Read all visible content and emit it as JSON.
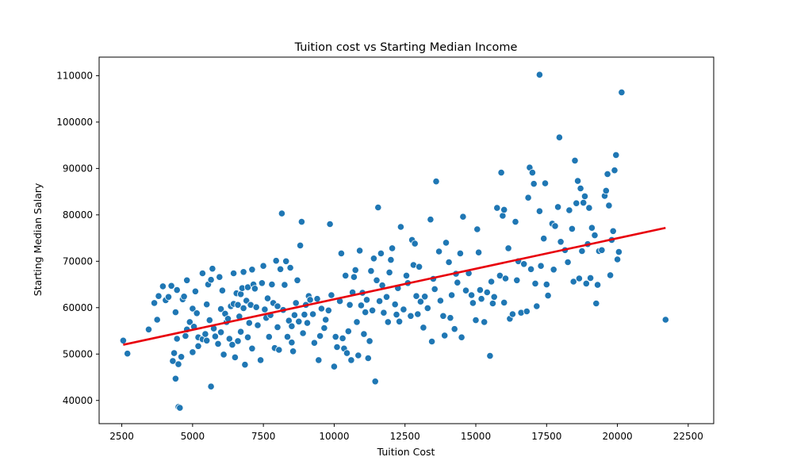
{
  "chart_data": {
    "type": "scatter",
    "title": "Tuition cost vs Starting Median Income",
    "xlabel": "Tuition Cost",
    "ylabel": "Starting Median Salary",
    "xlim": [
      1700,
      23400
    ],
    "ylim": [
      35000,
      114000
    ],
    "xticks": [
      2500,
      5000,
      7500,
      10000,
      12500,
      15000,
      17500,
      20000,
      22500
    ],
    "yticks": [
      40000,
      50000,
      60000,
      70000,
      80000,
      90000,
      100000,
      110000
    ],
    "grid": false,
    "legend": "none",
    "colors": {
      "points": "#1f77b4",
      "trend": "#e8000b"
    },
    "trendline": {
      "x": [
        2550,
        21700
      ],
      "y": [
        52000,
        77200
      ]
    },
    "points": [
      [
        2550,
        52900
      ],
      [
        2700,
        50100
      ],
      [
        3450,
        55300
      ],
      [
        3650,
        61000
      ],
      [
        3750,
        57400
      ],
      [
        3800,
        62500
      ],
      [
        3950,
        64600
      ],
      [
        4050,
        61600
      ],
      [
        4150,
        62300
      ],
      [
        4250,
        64700
      ],
      [
        4300,
        48500
      ],
      [
        4350,
        50200
      ],
      [
        4400,
        44700
      ],
      [
        4400,
        59000
      ],
      [
        4450,
        63800
      ],
      [
        4450,
        53300
      ],
      [
        4500,
        47800
      ],
      [
        4500,
        38600
      ],
      [
        4550,
        38400
      ],
      [
        4600,
        49400
      ],
      [
        4650,
        61800
      ],
      [
        4700,
        62400
      ],
      [
        4750,
        53900
      ],
      [
        4800,
        65900
      ],
      [
        4800,
        55300
      ],
      [
        4900,
        56900
      ],
      [
        5000,
        59800
      ],
      [
        5000,
        50400
      ],
      [
        5050,
        55900
      ],
      [
        5100,
        63500
      ],
      [
        5150,
        58800
      ],
      [
        5200,
        53600
      ],
      [
        5200,
        51700
      ],
      [
        5350,
        53200
      ],
      [
        5350,
        67400
      ],
      [
        5450,
        54300
      ],
      [
        5500,
        60700
      ],
      [
        5500,
        52900
      ],
      [
        5550,
        65000
      ],
      [
        5600,
        57300
      ],
      [
        5650,
        43000
      ],
      [
        5650,
        66000
      ],
      [
        5700,
        68400
      ],
      [
        5750,
        55500
      ],
      [
        5800,
        53800
      ],
      [
        5900,
        52200
      ],
      [
        5950,
        66600
      ],
      [
        6000,
        59700
      ],
      [
        6000,
        54700
      ],
      [
        6050,
        63700
      ],
      [
        6100,
        49900
      ],
      [
        6150,
        58700
      ],
      [
        6200,
        56900
      ],
      [
        6250,
        57600
      ],
      [
        6300,
        53300
      ],
      [
        6350,
        60300
      ],
      [
        6400,
        52000
      ],
      [
        6450,
        67400
      ],
      [
        6450,
        60800
      ],
      [
        6500,
        49300
      ],
      [
        6550,
        63100
      ],
      [
        6600,
        52800
      ],
      [
        6600,
        60600
      ],
      [
        6650,
        58100
      ],
      [
        6700,
        54800
      ],
      [
        6700,
        62900
      ],
      [
        6750,
        64200
      ],
      [
        6800,
        67700
      ],
      [
        6800,
        59900
      ],
      [
        6850,
        47700
      ],
      [
        6900,
        61500
      ],
      [
        6950,
        53600
      ],
      [
        6950,
        64400
      ],
      [
        7000,
        56700
      ],
      [
        7050,
        60600
      ],
      [
        7100,
        68200
      ],
      [
        7100,
        51200
      ],
      [
        7150,
        65000
      ],
      [
        7200,
        64100
      ],
      [
        7250,
        60100
      ],
      [
        7300,
        56200
      ],
      [
        7400,
        48700
      ],
      [
        7450,
        65300
      ],
      [
        7500,
        69000
      ],
      [
        7550,
        59600
      ],
      [
        7600,
        57800
      ],
      [
        7650,
        62000
      ],
      [
        7700,
        53700
      ],
      [
        7750,
        58400
      ],
      [
        7800,
        65000
      ],
      [
        7850,
        61000
      ],
      [
        7900,
        51300
      ],
      [
        7950,
        70100
      ],
      [
        8000,
        60300
      ],
      [
        8000,
        55800
      ],
      [
        8050,
        50900
      ],
      [
        8100,
        68300
      ],
      [
        8150,
        80300
      ],
      [
        8200,
        59500
      ],
      [
        8250,
        64900
      ],
      [
        8300,
        70000
      ],
      [
        8350,
        53700
      ],
      [
        8400,
        57200
      ],
      [
        8450,
        68600
      ],
      [
        8500,
        56000
      ],
      [
        8500,
        52500
      ],
      [
        8550,
        50600
      ],
      [
        8600,
        58400
      ],
      [
        8650,
        61000
      ],
      [
        8700,
        65900
      ],
      [
        8750,
        57000
      ],
      [
        8800,
        73400
      ],
      [
        8850,
        78500
      ],
      [
        8900,
        54500
      ],
      [
        8950,
        58500
      ],
      [
        9000,
        60600
      ],
      [
        9050,
        56700
      ],
      [
        9100,
        62500
      ],
      [
        9150,
        61700
      ],
      [
        9250,
        58600
      ],
      [
        9300,
        52400
      ],
      [
        9400,
        61900
      ],
      [
        9450,
        48700
      ],
      [
        9500,
        53900
      ],
      [
        9550,
        59800
      ],
      [
        9650,
        55600
      ],
      [
        9700,
        57400
      ],
      [
        9800,
        59400
      ],
      [
        9850,
        78000
      ],
      [
        9900,
        62700
      ],
      [
        10000,
        47300
      ],
      [
        10050,
        53700
      ],
      [
        10100,
        51500
      ],
      [
        10200,
        61400
      ],
      [
        10250,
        71700
      ],
      [
        10300,
        53400
      ],
      [
        10350,
        51200
      ],
      [
        10400,
        66900
      ],
      [
        10450,
        50200
      ],
      [
        10500,
        54900
      ],
      [
        10550,
        60600
      ],
      [
        10600,
        48700
      ],
      [
        10650,
        63300
      ],
      [
        10700,
        66600
      ],
      [
        10750,
        68100
      ],
      [
        10800,
        56900
      ],
      [
        10850,
        49700
      ],
      [
        10900,
        72300
      ],
      [
        10950,
        60500
      ],
      [
        11000,
        63200
      ],
      [
        11050,
        54300
      ],
      [
        11100,
        59000
      ],
      [
        11150,
        61700
      ],
      [
        11200,
        49100
      ],
      [
        11250,
        52800
      ],
      [
        11300,
        67900
      ],
      [
        11350,
        59400
      ],
      [
        11400,
        70600
      ],
      [
        11450,
        44100
      ],
      [
        11500,
        65900
      ],
      [
        11550,
        81600
      ],
      [
        11600,
        61400
      ],
      [
        11650,
        71700
      ],
      [
        11700,
        64800
      ],
      [
        11750,
        58900
      ],
      [
        11850,
        62300
      ],
      [
        11900,
        56900
      ],
      [
        11950,
        67600
      ],
      [
        12000,
        70300
      ],
      [
        12050,
        72800
      ],
      [
        12150,
        60700
      ],
      [
        12200,
        58500
      ],
      [
        12250,
        64200
      ],
      [
        12300,
        57000
      ],
      [
        12350,
        77400
      ],
      [
        12450,
        59600
      ],
      [
        12550,
        66900
      ],
      [
        12600,
        65300
      ],
      [
        12700,
        58200
      ],
      [
        12750,
        74600
      ],
      [
        12800,
        69200
      ],
      [
        12850,
        73800
      ],
      [
        12900,
        62500
      ],
      [
        12950,
        58600
      ],
      [
        13000,
        68800
      ],
      [
        13050,
        61300
      ],
      [
        13150,
        55700
      ],
      [
        13200,
        62400
      ],
      [
        13300,
        59900
      ],
      [
        13400,
        79000
      ],
      [
        13450,
        52700
      ],
      [
        13500,
        66200
      ],
      [
        13550,
        64000
      ],
      [
        13600,
        87200
      ],
      [
        13700,
        72100
      ],
      [
        13750,
        61500
      ],
      [
        13850,
        58200
      ],
      [
        13900,
        54000
      ],
      [
        13950,
        74000
      ],
      [
        14050,
        69800
      ],
      [
        14100,
        57800
      ],
      [
        14150,
        62700
      ],
      [
        14250,
        55400
      ],
      [
        14300,
        67300
      ],
      [
        14350,
        65400
      ],
      [
        14450,
        71700
      ],
      [
        14500,
        53600
      ],
      [
        14550,
        79600
      ],
      [
        14650,
        63700
      ],
      [
        14750,
        67400
      ],
      [
        14850,
        62700
      ],
      [
        14900,
        61000
      ],
      [
        15000,
        57300
      ],
      [
        15050,
        76900
      ],
      [
        15100,
        71900
      ],
      [
        15150,
        63800
      ],
      [
        15200,
        61900
      ],
      [
        15300,
        56900
      ],
      [
        15400,
        63300
      ],
      [
        15500,
        49600
      ],
      [
        15550,
        65600
      ],
      [
        15600,
        60900
      ],
      [
        15650,
        62300
      ],
      [
        15750,
        81500
      ],
      [
        15850,
        66900
      ],
      [
        15900,
        89100
      ],
      [
        15950,
        79800
      ],
      [
        16000,
        81100
      ],
      [
        16000,
        61100
      ],
      [
        16050,
        66300
      ],
      [
        16150,
        72800
      ],
      [
        16200,
        57600
      ],
      [
        16300,
        58600
      ],
      [
        16400,
        78500
      ],
      [
        16450,
        65900
      ],
      [
        16500,
        70000
      ],
      [
        16600,
        58900
      ],
      [
        16700,
        69400
      ],
      [
        16800,
        59200
      ],
      [
        16850,
        83700
      ],
      [
        16900,
        90200
      ],
      [
        16950,
        68300
      ],
      [
        17000,
        89100
      ],
      [
        17050,
        86700
      ],
      [
        17100,
        65200
      ],
      [
        17150,
        60300
      ],
      [
        17250,
        80800
      ],
      [
        17250,
        110200
      ],
      [
        17300,
        69000
      ],
      [
        17400,
        74900
      ],
      [
        17450,
        86800
      ],
      [
        17500,
        65000
      ],
      [
        17550,
        62600
      ],
      [
        17700,
        78100
      ],
      [
        17750,
        68200
      ],
      [
        17800,
        77600
      ],
      [
        17900,
        81700
      ],
      [
        17950,
        96700
      ],
      [
        18000,
        74200
      ],
      [
        18150,
        72400
      ],
      [
        18250,
        69800
      ],
      [
        18300,
        81000
      ],
      [
        18400,
        77000
      ],
      [
        18450,
        65600
      ],
      [
        18500,
        91700
      ],
      [
        18550,
        82500
      ],
      [
        18600,
        87300
      ],
      [
        18650,
        66300
      ],
      [
        18700,
        85700
      ],
      [
        18750,
        72200
      ],
      [
        18800,
        82600
      ],
      [
        18850,
        84000
      ],
      [
        18900,
        65200
      ],
      [
        18950,
        73700
      ],
      [
        19000,
        81500
      ],
      [
        19050,
        66400
      ],
      [
        19100,
        77200
      ],
      [
        19200,
        75600
      ],
      [
        19250,
        60900
      ],
      [
        19300,
        64900
      ],
      [
        19350,
        72200
      ],
      [
        19450,
        72400
      ],
      [
        19550,
        84100
      ],
      [
        19600,
        85200
      ],
      [
        19650,
        88800
      ],
      [
        19700,
        82000
      ],
      [
        19750,
        67000
      ],
      [
        19800,
        74600
      ],
      [
        19850,
        76500
      ],
      [
        19900,
        89600
      ],
      [
        19950,
        92900
      ],
      [
        20000,
        70400
      ],
      [
        20050,
        72000
      ],
      [
        20150,
        106400
      ],
      [
        21700,
        57400
      ]
    ]
  }
}
